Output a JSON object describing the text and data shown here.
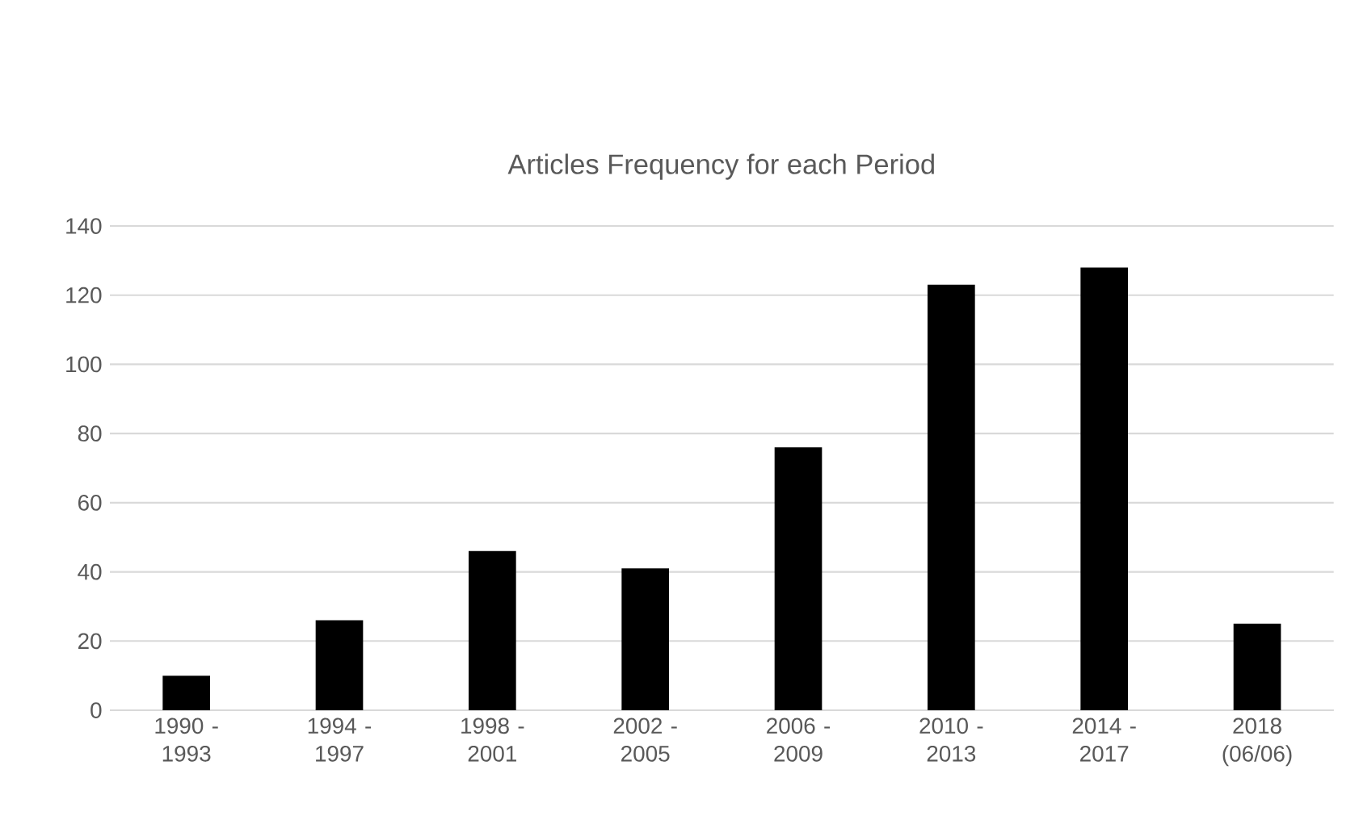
{
  "chart_data": {
    "type": "bar",
    "title": "Articles Frequency for each Period",
    "categories": [
      "1990 - 1993",
      "1994 - 1997",
      "1998 - 2001",
      "2002 - 2005",
      "2006 - 2009",
      "2010 - 2013",
      "2014 - 2017",
      "2018 (06/06)"
    ],
    "values": [
      10,
      26,
      46,
      41,
      76,
      123,
      128,
      25
    ],
    "color": "#000000",
    "ylim": [
      0,
      140
    ],
    "yticks": [
      0,
      20,
      40,
      60,
      80,
      100,
      120,
      140
    ],
    "grid": "y"
  }
}
